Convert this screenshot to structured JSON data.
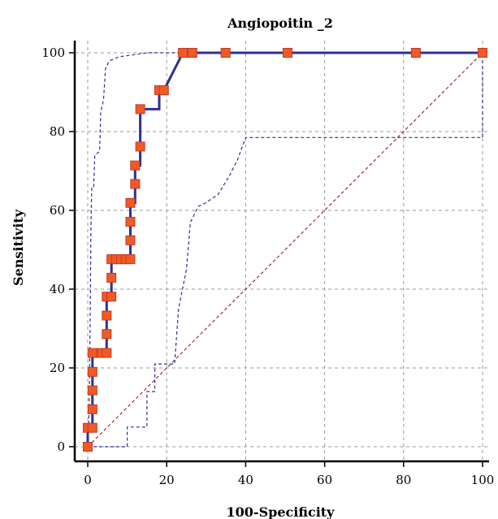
{
  "chart_data": {
    "type": "line",
    "title": "Angiopoitin _2",
    "xlabel": "100-Specificity",
    "ylabel": "Sensitivity",
    "xlim": [
      0,
      100
    ],
    "ylim": [
      0,
      100
    ],
    "x_ticks": [
      "0",
      "20",
      "40",
      "60",
      "80",
      "100"
    ],
    "y_ticks": [
      "0",
      "20",
      "40",
      "60",
      "80",
      "100"
    ],
    "grid": true,
    "colors": {
      "roc": "#2e3192",
      "marker_fill": "#f15a24",
      "marker_stroke": "#c0392b",
      "ci": "#2e3192",
      "reference": "#a33b3b",
      "grid": "#9a9a9a"
    },
    "roc_points": [
      [
        0,
        0
      ],
      [
        0,
        4.8
      ],
      [
        1.2,
        4.8
      ],
      [
        1.2,
        9.5
      ],
      [
        1.2,
        14.3
      ],
      [
        1.2,
        19.0
      ],
      [
        1.2,
        23.8
      ],
      [
        3.6,
        23.8
      ],
      [
        4.8,
        23.8
      ],
      [
        4.8,
        28.6
      ],
      [
        4.8,
        33.3
      ],
      [
        4.8,
        38.1
      ],
      [
        6.0,
        38.1
      ],
      [
        6.0,
        42.9
      ],
      [
        6.0,
        47.6
      ],
      [
        7.2,
        47.6
      ],
      [
        8.4,
        47.6
      ],
      [
        9.6,
        47.6
      ],
      [
        10.8,
        47.6
      ],
      [
        10.8,
        52.4
      ],
      [
        10.8,
        57.1
      ],
      [
        10.8,
        61.9
      ],
      [
        12.0,
        61.9
      ],
      [
        12.0,
        66.7
      ],
      [
        12.0,
        71.4
      ],
      [
        13.3,
        71.4
      ],
      [
        13.3,
        76.2
      ],
      [
        13.3,
        81.0
      ],
      [
        13.3,
        85.7
      ],
      [
        18.1,
        85.7
      ],
      [
        18.1,
        90.5
      ],
      [
        19.3,
        90.5
      ],
      [
        24.1,
        100
      ],
      [
        25.3,
        100
      ],
      [
        26.5,
        100
      ],
      [
        34.9,
        100
      ],
      [
        50.6,
        100
      ],
      [
        83.1,
        100
      ],
      [
        100,
        100
      ]
    ],
    "marker_points": [
      [
        0,
        0
      ],
      [
        0,
        4.8
      ],
      [
        1.2,
        4.8
      ],
      [
        1.2,
        9.5
      ],
      [
        1.2,
        14.3
      ],
      [
        1.2,
        19.0
      ],
      [
        1.2,
        23.8
      ],
      [
        3.6,
        23.8
      ],
      [
        4.8,
        23.8
      ],
      [
        4.8,
        28.6
      ],
      [
        4.8,
        33.3
      ],
      [
        4.8,
        38.1
      ],
      [
        6.0,
        38.1
      ],
      [
        6.0,
        42.9
      ],
      [
        6.0,
        47.6
      ],
      [
        7.2,
        47.6
      ],
      [
        8.4,
        47.6
      ],
      [
        9.6,
        47.6
      ],
      [
        10.8,
        47.6
      ],
      [
        10.8,
        52.4
      ],
      [
        10.8,
        57.1
      ],
      [
        10.8,
        61.9
      ],
      [
        12.0,
        66.7
      ],
      [
        12.0,
        71.4
      ],
      [
        13.3,
        76.2
      ],
      [
        13.3,
        85.7
      ],
      [
        18.1,
        90.5
      ],
      [
        19.3,
        90.5
      ],
      [
        24.1,
        100
      ],
      [
        26.5,
        100
      ],
      [
        34.9,
        100
      ],
      [
        50.6,
        100
      ],
      [
        83.1,
        100
      ],
      [
        100,
        100
      ]
    ],
    "ci_upper": [
      [
        0,
        0
      ],
      [
        0.3,
        8
      ],
      [
        0.6,
        30
      ],
      [
        0.8,
        55
      ],
      [
        1.0,
        66
      ],
      [
        1.5,
        66
      ],
      [
        1.8,
        74
      ],
      [
        3.0,
        75
      ],
      [
        3.3,
        85
      ],
      [
        4.0,
        88
      ],
      [
        4.5,
        96
      ],
      [
        5.5,
        98
      ],
      [
        8,
        99
      ],
      [
        15,
        100
      ],
      [
        100,
        100
      ]
    ],
    "ci_lower": [
      [
        0,
        0
      ],
      [
        10,
        0
      ],
      [
        10,
        5
      ],
      [
        15,
        5
      ],
      [
        15,
        14
      ],
      [
        17,
        14
      ],
      [
        17,
        21
      ],
      [
        22,
        21
      ],
      [
        23,
        35
      ],
      [
        24,
        40
      ],
      [
        25,
        45
      ],
      [
        26,
        57
      ],
      [
        28,
        61
      ],
      [
        30,
        62
      ],
      [
        33,
        64
      ],
      [
        36,
        69
      ],
      [
        38,
        73
      ],
      [
        40,
        78.5
      ],
      [
        100,
        78.5
      ],
      [
        100,
        100
      ]
    ],
    "reference_line": [
      [
        0,
        0
      ],
      [
        100,
        100
      ]
    ]
  }
}
